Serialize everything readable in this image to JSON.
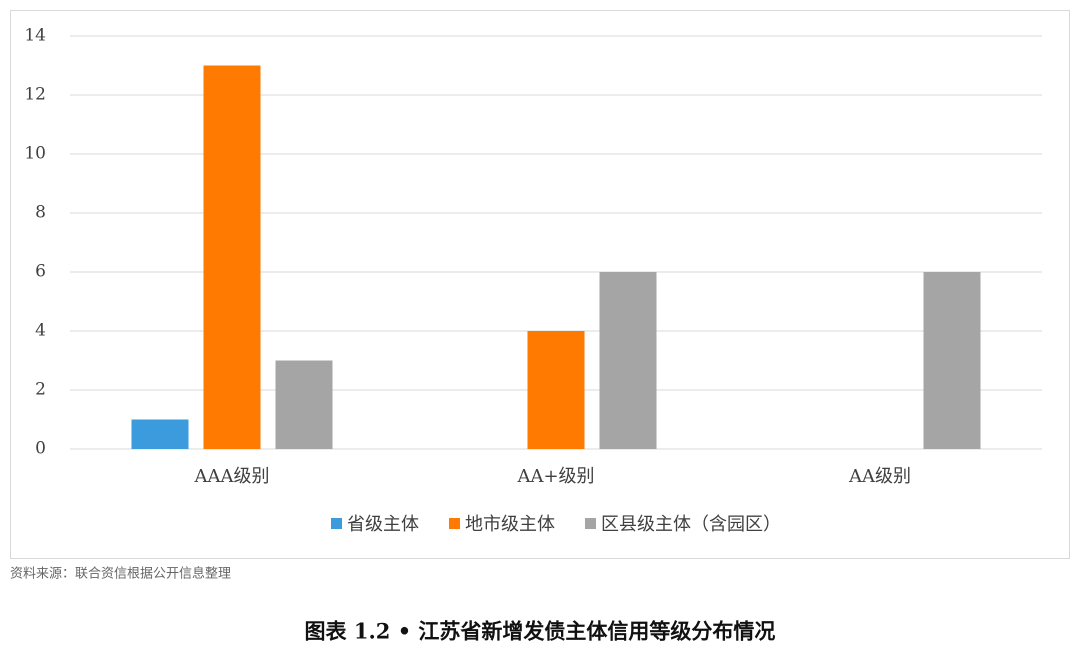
{
  "chart_data": {
    "type": "bar",
    "categories": [
      "AAA级别",
      "AA+级别",
      "AA级别"
    ],
    "series": [
      {
        "name": "省级主体",
        "color": "#3b9bdc",
        "values": [
          1,
          0,
          0
        ]
      },
      {
        "name": "地市级主体",
        "color": "#ff7a00",
        "values": [
          13,
          4,
          0
        ]
      },
      {
        "name": "区县级主体（含园区）",
        "color": "#a5a5a5",
        "values": [
          3,
          6,
          6
        ]
      }
    ],
    "ylim": [
      0,
      14
    ],
    "yticks": [
      0,
      2,
      4,
      6,
      8,
      10,
      12,
      14
    ],
    "grid": true,
    "legend": "bottom",
    "source": "资料来源：联合资信根据公开信息整理",
    "caption": "图表 1.2 • 江苏省新增发债主体信用等级分布情况"
  }
}
